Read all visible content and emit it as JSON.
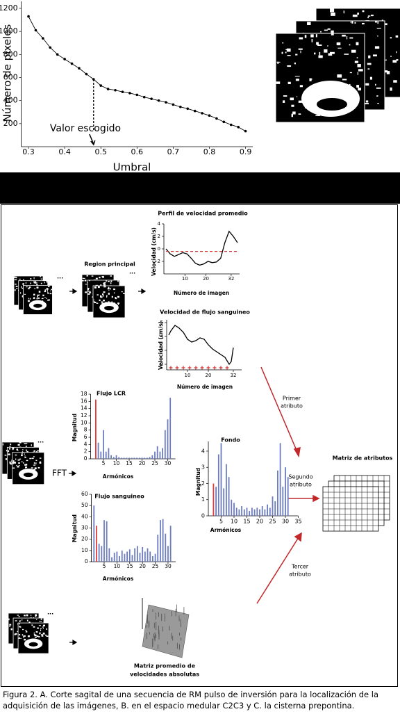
{
  "chart_data": [
    {
      "type": "line",
      "xlabel": "Umbral",
      "ylabel": "Número de pixeles",
      "annotation": {
        "text": "Valor escogido",
        "x": 0.48
      },
      "xlim": [
        0.28,
        0.92
      ],
      "ylim": [
        0,
        1200
      ],
      "xticks": [
        0.3,
        0.4,
        0.5,
        0.6,
        0.7,
        0.8,
        0.9
      ],
      "yticks": [
        200,
        400,
        600,
        800,
        1000,
        1200
      ],
      "series": [
        {
          "color": "#000000",
          "points": true,
          "x": [
            0.3,
            0.32,
            0.34,
            0.36,
            0.38,
            0.4,
            0.42,
            0.44,
            0.46,
            0.48,
            0.5,
            0.52,
            0.54,
            0.56,
            0.58,
            0.6,
            0.62,
            0.64,
            0.66,
            0.68,
            0.7,
            0.72,
            0.74,
            0.76,
            0.78,
            0.8,
            0.82,
            0.84,
            0.86,
            0.88,
            0.9
          ],
          "values": [
            1130,
            1010,
            940,
            860,
            800,
            760,
            720,
            680,
            630,
            585,
            530,
            500,
            490,
            475,
            465,
            450,
            430,
            415,
            400,
            385,
            365,
            345,
            330,
            310,
            290,
            270,
            245,
            215,
            190,
            170,
            135
          ]
        }
      ]
    },
    {
      "type": "line",
      "title": "Perfil de velocidad promedio",
      "xlabel": "Número de imagen",
      "ylabel": "Velocidad (cm/s)",
      "xlim": [
        0,
        36
      ],
      "ylim": [
        -4,
        4
      ],
      "xticks": [
        10,
        20,
        32
      ],
      "yticks": [
        -2,
        0,
        2,
        4
      ],
      "series": [
        {
          "color": "#000000",
          "x": [
            1,
            3,
            5,
            7,
            9,
            11,
            13,
            15,
            17,
            19,
            21,
            23,
            25,
            27,
            29,
            31,
            33,
            35
          ],
          "values": [
            0,
            -0.8,
            -1.2,
            -0.9,
            -0.6,
            -0.8,
            -1.5,
            -2.3,
            -2.6,
            -2.4,
            -2,
            -2.2,
            -2.1,
            -1.5,
            1,
            2.8,
            2,
            1
          ]
        },
        {
          "color": "#d03030",
          "dash": true,
          "x": [
            1,
            35
          ],
          "values": [
            -0.4,
            -0.4
          ]
        }
      ]
    },
    {
      "type": "line",
      "title": "Velocidad de flujo sanguineo",
      "xlabel": "Número de imagen",
      "ylabel": "Velocidad (cm/s)",
      "xlim": [
        0,
        36
      ],
      "ylim": [
        1.6,
        5.2
      ],
      "xticks": [
        10,
        20,
        32
      ],
      "yticks": [
        2,
        3,
        4,
        5
      ],
      "series": [
        {
          "color": "#000000",
          "x": [
            1,
            2,
            4,
            6,
            8,
            10,
            12,
            14,
            16,
            18,
            20,
            22,
            24,
            26,
            28,
            30,
            31,
            32
          ],
          "values": [
            4.1,
            4.4,
            4.8,
            4.6,
            4.3,
            3.8,
            3.6,
            3.7,
            3.9,
            3.8,
            3.4,
            3.1,
            2.9,
            2.7,
            2.5,
            2,
            2.2,
            3.2
          ]
        },
        {
          "color": "#d03030",
          "marker": "+",
          "x": [
            2,
            5,
            8,
            11,
            14,
            17,
            20,
            23,
            26,
            29
          ],
          "values": [
            1.75,
            1.75,
            1.75,
            1.75,
            1.75,
            1.75,
            1.75,
            1.75,
            1.75,
            1.75
          ]
        }
      ]
    },
    {
      "type": "bar",
      "title": "Flujo LCR",
      "xlabel": "Armónicos",
      "ylabel": "Magnitud",
      "xlim": [
        0,
        33
      ],
      "ylim": [
        0,
        18
      ],
      "xticks": [
        5,
        10,
        15,
        20,
        25,
        30
      ],
      "yticks": [
        0,
        2,
        4,
        6,
        8,
        10,
        12,
        14,
        16,
        18
      ],
      "x": [
        1,
        2,
        3,
        4,
        5,
        6,
        7,
        8,
        9,
        10,
        11,
        12,
        13,
        14,
        15,
        16,
        17,
        18,
        19,
        20,
        21,
        22,
        23,
        24,
        25,
        26,
        27,
        28,
        29,
        30,
        31
      ],
      "values": [
        0,
        16.5,
        4.5,
        2,
        8,
        2,
        3,
        1,
        0.5,
        1,
        0.5,
        0.3,
        0.3,
        0.3,
        0.3,
        0.3,
        0.3,
        0.3,
        0.3,
        0.3,
        0.3,
        0.3,
        0.5,
        1,
        2,
        3.5,
        2,
        3,
        8,
        11,
        17
      ],
      "colors": [
        "#6b7cc0",
        "#e03c3c",
        "#6b7cc0",
        "#6b7cc0",
        "#6b7cc0",
        "#6b7cc0",
        "#6b7cc0",
        "#6b7cc0",
        "#6b7cc0",
        "#6b7cc0",
        "#6b7cc0",
        "#6b7cc0",
        "#6b7cc0",
        "#6b7cc0",
        "#6b7cc0",
        "#6b7cc0",
        "#6b7cc0",
        "#6b7cc0",
        "#6b7cc0",
        "#6b7cc0",
        "#6b7cc0",
        "#6b7cc0",
        "#6b7cc0",
        "#6b7cc0",
        "#6b7cc0",
        "#6b7cc0",
        "#6b7cc0",
        "#6b7cc0",
        "#6b7cc0",
        "#6b7cc0",
        "#6b7cc0"
      ]
    },
    {
      "type": "bar",
      "title": "Flujo sanguineo",
      "xlabel": "Armónicos",
      "ylabel": "Magnitud",
      "xlim": [
        0,
        33
      ],
      "ylim": [
        0,
        60
      ],
      "xticks": [
        5,
        10,
        15,
        20,
        25,
        30
      ],
      "yticks": [
        0,
        10,
        20,
        30,
        40,
        50,
        60
      ],
      "x": [
        1,
        2,
        3,
        4,
        5,
        6,
        7,
        8,
        9,
        10,
        11,
        12,
        13,
        14,
        15,
        16,
        17,
        18,
        19,
        20,
        21,
        22,
        23,
        24,
        25,
        26,
        27,
        28,
        29,
        30,
        31
      ],
      "values": [
        50,
        32,
        16,
        14,
        37,
        36,
        12,
        4,
        8,
        9,
        5,
        10,
        7,
        9,
        11,
        6,
        12,
        14,
        8,
        13,
        9,
        12,
        9,
        5,
        7,
        24,
        37,
        38,
        25,
        14,
        32
      ],
      "colors": [
        "#6b7cc0",
        "#e03c3c",
        "#6b7cc0",
        "#6b7cc0",
        "#6b7cc0",
        "#6b7cc0",
        "#6b7cc0",
        "#6b7cc0",
        "#6b7cc0",
        "#6b7cc0",
        "#6b7cc0",
        "#6b7cc0",
        "#6b7cc0",
        "#6b7cc0",
        "#6b7cc0",
        "#6b7cc0",
        "#6b7cc0",
        "#6b7cc0",
        "#6b7cc0",
        "#6b7cc0",
        "#6b7cc0",
        "#6b7cc0",
        "#6b7cc0",
        "#6b7cc0",
        "#6b7cc0",
        "#6b7cc0",
        "#6b7cc0",
        "#6b7cc0",
        "#6b7cc0",
        "#6b7cc0",
        "#6b7cc0"
      ]
    },
    {
      "type": "bar",
      "title": "Fondo",
      "xlabel": "Armónicos",
      "ylabel": "Magnitud",
      "xlim": [
        0,
        35
      ],
      "ylim": [
        0,
        4.6
      ],
      "xticks": [
        5,
        10,
        15,
        20,
        25,
        30,
        35
      ],
      "yticks": [
        0,
        1,
        2,
        3,
        4
      ],
      "x": [
        1,
        2,
        3,
        4,
        5,
        6,
        7,
        8,
        9,
        10,
        11,
        12,
        13,
        14,
        15,
        16,
        17,
        18,
        19,
        20,
        21,
        22,
        23,
        24,
        25,
        26,
        27,
        28,
        29,
        30,
        31
      ],
      "values": [
        0,
        2,
        1.8,
        3.8,
        4.5,
        1.7,
        3.2,
        2.4,
        1,
        0.8,
        0.5,
        0.4,
        0.6,
        0.4,
        0.5,
        0.3,
        0.5,
        0.4,
        0.5,
        0.4,
        0.6,
        0.4,
        0.7,
        0.5,
        1.2,
        0.9,
        2.8,
        4.5,
        1.8,
        3,
        2.4
      ],
      "colors": [
        "#6b7cc0",
        "#e03c3c",
        "#6b7cc0",
        "#6b7cc0",
        "#6b7cc0",
        "#6b7cc0",
        "#6b7cc0",
        "#6b7cc0",
        "#6b7cc0",
        "#6b7cc0",
        "#6b7cc0",
        "#6b7cc0",
        "#6b7cc0",
        "#6b7cc0",
        "#6b7cc0",
        "#6b7cc0",
        "#6b7cc0",
        "#6b7cc0",
        "#6b7cc0",
        "#6b7cc0",
        "#6b7cc0",
        "#6b7cc0",
        "#6b7cc0",
        "#6b7cc0",
        "#6b7cc0",
        "#6b7cc0",
        "#6b7cc0",
        "#6b7cc0",
        "#6b7cc0",
        "#6b7cc0",
        "#6b7cc0"
      ]
    }
  ],
  "diagram": {
    "region_label": "Region principal",
    "ellipsis": "...",
    "fft": "FFT",
    "first_attribute": [
      "Primer",
      "atributo"
    ],
    "second_attribute": [
      "Segundo",
      "atributo"
    ],
    "third_attribute": [
      "Tercer",
      "atributo"
    ],
    "matrix_label": "Matriz de atributos",
    "mean_matrix_label": [
      "Matriz promedio de",
      "velocidades absolutas"
    ]
  },
  "caption": "Figura 2. A. Corte sagital de una secuencia de RM pulso de inversión para la localización de la adquisición de las imágenes, B. en el espacio medular C2C3 y C. la cisterna prepontina."
}
